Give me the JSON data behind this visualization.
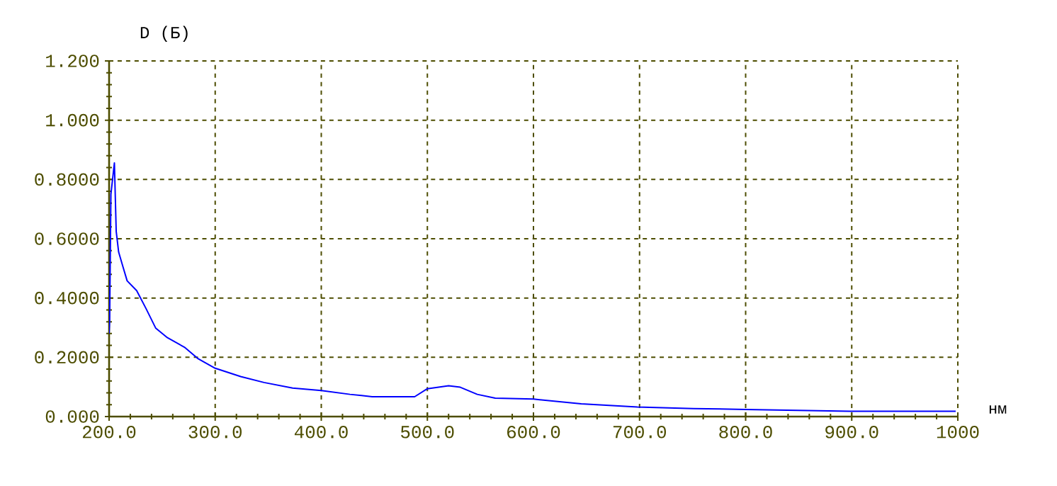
{
  "chart_data": {
    "type": "line",
    "xlabel": "нм",
    "ylabel": "D (Б)",
    "x": [
      200,
      200.5,
      201.7,
      205,
      206.7,
      209,
      213,
      217,
      226,
      235,
      244,
      255,
      271,
      284,
      300,
      324,
      346,
      373,
      400,
      427,
      448,
      488,
      500,
      520,
      531,
      547,
      564,
      600,
      645,
      698,
      751,
      800,
      898,
      998
    ],
    "series": [
      {
        "color": "#0000ff",
        "values": [
          0.28,
          0.32,
          0.75,
          0.856,
          0.625,
          0.555,
          0.506,
          0.458,
          0.425,
          0.363,
          0.298,
          0.266,
          0.234,
          0.195,
          0.163,
          0.135,
          0.115,
          0.096,
          0.088,
          0.075,
          0.067,
          0.067,
          0.094,
          0.104,
          0.099,
          0.075,
          0.062,
          0.059,
          0.043,
          0.032,
          0.027,
          0.024,
          0.018,
          0.018
        ]
      }
    ],
    "xlim": [
      200,
      1000
    ],
    "ylim": [
      0,
      1.2
    ],
    "xticks": [
      {
        "value": 200,
        "label": "200.0"
      },
      {
        "value": 300,
        "label": "300.0"
      },
      {
        "value": 400,
        "label": "400.0"
      },
      {
        "value": 500,
        "label": "500.0"
      },
      {
        "value": 600,
        "label": "600.0"
      },
      {
        "value": 700,
        "label": "700.0"
      },
      {
        "value": 800,
        "label": "800.0"
      },
      {
        "value": 900,
        "label": "900.0"
      },
      1000
    ],
    "yticks": [
      {
        "value": 0,
        "label": "0.000"
      },
      {
        "value": 0.2,
        "label": "0.2000"
      },
      {
        "value": 0.4,
        "label": "0.4000"
      },
      {
        "value": 0.6,
        "label": "0.6000"
      },
      {
        "value": 0.8,
        "label": "0.8000"
      },
      {
        "value": 1,
        "label": "1.000"
      },
      {
        "value": 1.2,
        "label": "1.200"
      }
    ],
    "grid": true,
    "line_style": "solid",
    "marker": "none"
  }
}
